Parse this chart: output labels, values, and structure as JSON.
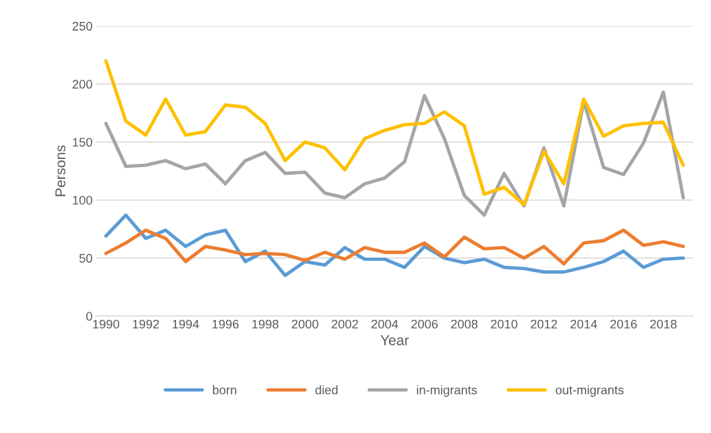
{
  "chart_data": {
    "type": "line",
    "xlabel": "Year",
    "ylabel": "Persons",
    "x": [
      1990,
      1991,
      1992,
      1993,
      1994,
      1995,
      1996,
      1997,
      1998,
      1999,
      2000,
      2001,
      2002,
      2003,
      2004,
      2005,
      2006,
      2007,
      2008,
      2009,
      2010,
      2011,
      2012,
      2013,
      2014,
      2015,
      2016,
      2017,
      2018,
      2019
    ],
    "series": [
      {
        "name": "born",
        "color": "#5b9bd5",
        "values": [
          69,
          87,
          67,
          74,
          60,
          70,
          74,
          47,
          56,
          35,
          47,
          44,
          59,
          49,
          49,
          42,
          60,
          50,
          46,
          49,
          42,
          41,
          38,
          38,
          42,
          47,
          56,
          42,
          49,
          50
        ]
      },
      {
        "name": "died",
        "color": "#ed7d31",
        "values": [
          54,
          63,
          74,
          67,
          47,
          60,
          57,
          53,
          54,
          53,
          48,
          55,
          49,
          59,
          55,
          55,
          63,
          51,
          68,
          58,
          59,
          50,
          60,
          45,
          63,
          65,
          74,
          61,
          64,
          60
        ]
      },
      {
        "name": "in-migrants",
        "color": "#a5a5a5",
        "values": [
          166,
          129,
          130,
          134,
          127,
          131,
          114,
          134,
          141,
          123,
          124,
          106,
          102,
          114,
          119,
          133,
          190,
          153,
          104,
          87,
          123,
          95,
          145,
          95,
          185,
          128,
          122,
          149,
          193,
          102
        ]
      },
      {
        "name": "out-migrants",
        "color": "#ffc000",
        "values": [
          220,
          168,
          156,
          187,
          156,
          159,
          182,
          180,
          166,
          134,
          150,
          145,
          126,
          153,
          160,
          165,
          166,
          176,
          164,
          105,
          111,
          96,
          142,
          114,
          187,
          155,
          164,
          166,
          167,
          130
        ]
      }
    ],
    "xlim": [
      1989.5,
      2019.5
    ],
    "xticks": [
      1990,
      1992,
      1994,
      1996,
      1998,
      2000,
      2002,
      2004,
      2006,
      2008,
      2010,
      2012,
      2014,
      2016,
      2018
    ],
    "ylim": [
      0,
      250
    ],
    "yticks": [
      0,
      50,
      100,
      150,
      200,
      250
    ],
    "grid": "y",
    "legend": "bottom",
    "marker": "none",
    "line_style": "solid"
  }
}
